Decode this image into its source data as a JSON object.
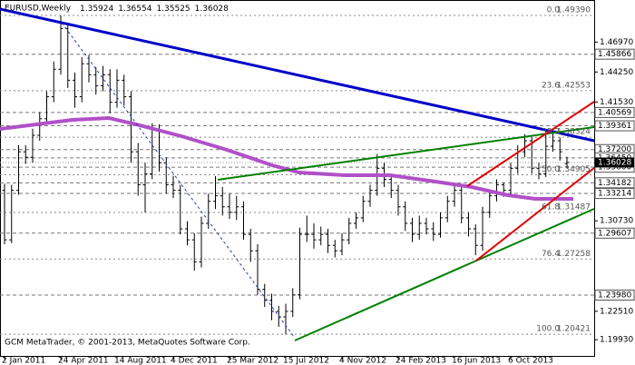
{
  "chart_data": {
    "type": "ohlc",
    "title": "EURUSD,Weekly",
    "footer": "GCM MetaTrader, © 2001-2013, MetaQuotes Software Corp.",
    "categories": [
      "2 Jan 2011",
      null,
      null,
      null,
      null,
      null,
      null,
      null,
      "24 Apr 2011",
      null,
      null,
      null,
      null,
      null,
      null,
      null,
      "14 Aug 2011",
      null,
      null,
      null,
      null,
      null,
      null,
      null,
      "4 Dec 2011",
      null,
      null,
      null,
      null,
      null,
      null,
      null,
      "25 Mar 2012",
      null,
      null,
      null,
      null,
      null,
      null,
      null,
      "15 Jul 2012",
      null,
      null,
      null,
      null,
      null,
      null,
      null,
      "4 Nov 2012",
      null,
      null,
      null,
      null,
      null,
      null,
      null,
      "24 Feb 2013",
      null,
      null,
      null,
      null,
      null,
      null,
      null,
      "16 Jun 2013",
      null,
      null,
      null,
      null,
      null,
      null,
      null,
      "6 Oct 2013",
      null,
      null,
      null,
      null,
      null,
      null,
      null,
      null
    ],
    "open": [
      1.335,
      1.29,
      1.335,
      1.37,
      1.365,
      1.385,
      1.4,
      1.42,
      1.445,
      1.482,
      1.435,
      1.42,
      1.45,
      1.44,
      1.43,
      1.44,
      1.415,
      1.435,
      1.42,
      1.37,
      1.34,
      1.35,
      1.39,
      1.36,
      1.34,
      1.335,
      1.3,
      1.29,
      1.27,
      1.305,
      1.325,
      1.33,
      1.32,
      1.315,
      1.32,
      1.295,
      1.28,
      1.245,
      1.235,
      1.225,
      1.22,
      1.225,
      1.24,
      1.295,
      1.295,
      1.29,
      1.295,
      1.285,
      1.28,
      1.29,
      1.305,
      1.31,
      1.325,
      1.335,
      1.355,
      1.345,
      1.335,
      1.32,
      1.305,
      1.295,
      1.305,
      1.3,
      1.295,
      1.31,
      1.325,
      1.335,
      1.31,
      1.3,
      1.285,
      1.315,
      1.33,
      1.34,
      1.335,
      1.355,
      1.37,
      1.38,
      1.355,
      1.35,
      1.375,
      1.38,
      1.35924
    ],
    "high": [
      1.341,
      1.34,
      1.376,
      1.376,
      1.391,
      1.406,
      1.425,
      1.452,
      1.4939,
      1.486,
      1.442,
      1.456,
      1.458,
      1.447,
      1.448,
      1.445,
      1.445,
      1.44,
      1.425,
      1.378,
      1.36,
      1.396,
      1.395,
      1.365,
      1.348,
      1.34,
      1.307,
      1.296,
      1.311,
      1.332,
      1.348,
      1.338,
      1.332,
      1.33,
      1.325,
      1.3,
      1.286,
      1.25,
      1.241,
      1.23,
      1.232,
      1.246,
      1.301,
      1.312,
      1.305,
      1.302,
      1.3,
      1.29,
      1.296,
      1.31,
      1.315,
      1.33,
      1.34,
      1.368,
      1.36,
      1.35,
      1.34,
      1.325,
      1.31,
      1.312,
      1.31,
      1.306,
      1.315,
      1.33,
      1.342,
      1.338,
      1.315,
      1.304,
      1.32,
      1.335,
      1.345,
      1.342,
      1.36,
      1.376,
      1.386,
      1.383,
      1.36,
      1.389,
      1.387,
      1.383,
      1.36554
    ],
    "low": [
      1.286,
      1.287,
      1.331,
      1.359,
      1.36,
      1.38,
      1.395,
      1.415,
      1.44,
      1.428,
      1.41,
      1.415,
      1.433,
      1.422,
      1.425,
      1.405,
      1.41,
      1.412,
      1.36,
      1.33,
      1.315,
      1.345,
      1.352,
      1.332,
      1.328,
      1.295,
      1.285,
      1.262,
      1.265,
      1.3,
      1.318,
      1.312,
      1.309,
      1.308,
      1.29,
      1.27,
      1.24,
      1.229,
      1.217,
      1.211,
      1.2042,
      1.22,
      1.236,
      1.288,
      1.282,
      1.285,
      1.278,
      1.274,
      1.276,
      1.286,
      1.3,
      1.306,
      1.32,
      1.33,
      1.338,
      1.328,
      1.312,
      1.298,
      1.288,
      1.29,
      1.295,
      1.289,
      1.292,
      1.306,
      1.32,
      1.305,
      1.293,
      1.276,
      1.28,
      1.31,
      1.325,
      1.329,
      1.33,
      1.35,
      1.365,
      1.35,
      1.345,
      1.347,
      1.37,
      1.362,
      1.35525
    ],
    "close": [
      1.29,
      1.335,
      1.37,
      1.365,
      1.385,
      1.4,
      1.42,
      1.445,
      1.482,
      1.435,
      1.42,
      1.45,
      1.44,
      1.43,
      1.44,
      1.415,
      1.435,
      1.42,
      1.37,
      1.34,
      1.35,
      1.39,
      1.36,
      1.34,
      1.335,
      1.3,
      1.29,
      1.27,
      1.305,
      1.325,
      1.33,
      1.32,
      1.315,
      1.32,
      1.295,
      1.28,
      1.245,
      1.235,
      1.225,
      1.22,
      1.225,
      1.24,
      1.295,
      1.295,
      1.29,
      1.295,
      1.285,
      1.28,
      1.29,
      1.305,
      1.31,
      1.325,
      1.335,
      1.355,
      1.345,
      1.335,
      1.32,
      1.305,
      1.295,
      1.305,
      1.3,
      1.295,
      1.31,
      1.325,
      1.335,
      1.31,
      1.3,
      1.285,
      1.315,
      1.33,
      1.34,
      1.335,
      1.355,
      1.37,
      1.38,
      1.355,
      1.35,
      1.375,
      1.38,
      1.37,
      1.36028
    ],
    "close_label": "1.36028",
    "ylim": [
      1.1837,
      1.5079
    ],
    "yticks": [
      {
        "value": 1.4697,
        "label": "1.46970"
      },
      {
        "value": 1.4425,
        "label": "1.44250"
      },
      {
        "value": 1.4153,
        "label": "1.41530"
      },
      {
        "value": 1.3073,
        "label": "1.30730"
      },
      {
        "value": 1.2251,
        "label": "1.22510"
      },
      {
        "value": 1.1993,
        "label": "1.19930"
      }
    ],
    "levels": [
      {
        "value": 1.45866,
        "label": "1.45866"
      },
      {
        "value": 1.40569,
        "label": "1.40569"
      },
      {
        "value": 1.39361,
        "label": "1.39361"
      },
      {
        "value": 1.372,
        "label": "1.37200"
      },
      {
        "value": 1.3645,
        "label": "1.36450"
      },
      {
        "value": 1.356,
        "label": "1.35600"
      },
      {
        "value": 1.34182,
        "label": "1.34182"
      },
      {
        "value": 1.33214,
        "label": "1.33214"
      },
      {
        "value": 1.29607,
        "label": "1.29607"
      },
      {
        "value": 1.2398,
        "label": "1.23980"
      }
    ],
    "fibonacci": [
      {
        "ratio": "0.0",
        "value": 1.4939,
        "label": "1.49390"
      },
      {
        "ratio": "23.6",
        "value": 1.42553,
        "label": "1.42553"
      },
      {
        "ratio": "38.2",
        "value": 1.38324,
        "label": "1.38324"
      },
      {
        "ratio": "50.0",
        "value": 1.34905,
        "label": "1.34905"
      },
      {
        "ratio": "61.8",
        "value": 1.31487,
        "label": "1.31487"
      },
      {
        "ratio": "76.4",
        "value": 1.27258,
        "label": "1.27258"
      },
      {
        "ratio": "100.0",
        "value": 1.20421,
        "label": "1.20421"
      }
    ]
  }
}
